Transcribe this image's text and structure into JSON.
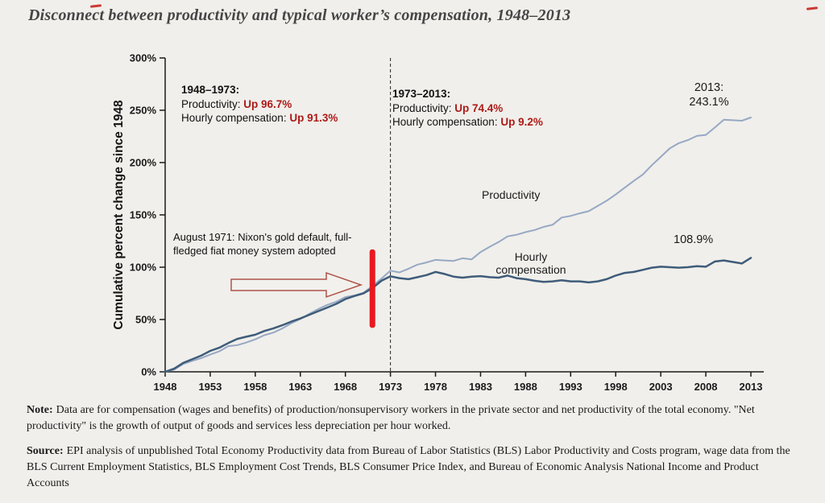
{
  "page": {
    "title": "Disconnect between productivity and typical worker’s compensation, 1948–2013"
  },
  "colors": {
    "background": "#f0efeb",
    "accent_red_text": "#ad1a17",
    "event_bar_red": "#e8191f",
    "productivity_line": "#97a8c4",
    "compensation_line": "#3f5c7a",
    "axis": "#1a1a1a"
  },
  "chart_data": {
    "type": "line",
    "title": "Disconnect between productivity and typical worker’s compensation, 1948–2013",
    "xlabel": "",
    "ylabel": "Cumulative percent change since 1948",
    "ylim": [
      0,
      300
    ],
    "y_ticks": [
      0,
      50,
      100,
      150,
      200,
      250,
      300
    ],
    "y_tick_labels": [
      "0%",
      "50%",
      "100%",
      "150%",
      "200%",
      "250%",
      "300%"
    ],
    "x_ticks": [
      1948,
      1953,
      1958,
      1963,
      1968,
      1973,
      1978,
      1983,
      1988,
      1993,
      1998,
      2003,
      2008,
      2013
    ],
    "x": [
      1948,
      1949,
      1950,
      1951,
      1952,
      1953,
      1954,
      1955,
      1956,
      1957,
      1958,
      1959,
      1960,
      1961,
      1962,
      1963,
      1964,
      1965,
      1966,
      1967,
      1968,
      1969,
      1970,
      1971,
      1972,
      1973,
      1974,
      1975,
      1976,
      1977,
      1978,
      1979,
      1980,
      1981,
      1982,
      1983,
      1984,
      1985,
      1986,
      1987,
      1988,
      1989,
      1990,
      1991,
      1992,
      1993,
      1994,
      1995,
      1996,
      1997,
      1998,
      1999,
      2000,
      2001,
      2002,
      2003,
      2004,
      2005,
      2006,
      2007,
      2008,
      2009,
      2010,
      2011,
      2012,
      2013
    ],
    "series": [
      {
        "name": "Productivity",
        "color": "#97a8c4",
        "width": 2,
        "values": [
          0,
          2.1,
          7.5,
          10.5,
          13,
          16.5,
          19.5,
          24.5,
          25.5,
          28,
          31,
          35,
          37.5,
          41.5,
          46.5,
          50.5,
          55.5,
          60,
          64,
          67,
          71.5,
          73,
          75.5,
          82,
          89,
          96.7,
          95,
          98.5,
          102.5,
          104.5,
          107,
          106.5,
          106,
          108.5,
          107.5,
          114.5,
          119.5,
          124,
          129.5,
          131,
          133.5,
          135.5,
          138.5,
          140.5,
          147.5,
          149,
          151.5,
          153.5,
          158.5,
          163.5,
          169.5,
          176,
          182.5,
          188.5,
          197.5,
          205.5,
          213.5,
          218.5,
          221.5,
          225.5,
          226.5,
          233.5,
          241,
          240.5,
          240,
          243.1
        ]
      },
      {
        "name": "Hourly compensation",
        "color": "#3f5c7a",
        "width": 2.5,
        "values": [
          0,
          3,
          8.5,
          12,
          15.5,
          20,
          23,
          27.5,
          31.5,
          33.5,
          35.5,
          39,
          41.5,
          44.5,
          48,
          51,
          54.5,
          58,
          61.5,
          65,
          69.5,
          72.5,
          75,
          80,
          87,
          91.3,
          89.5,
          88.5,
          90.5,
          92.5,
          95.5,
          93.5,
          91,
          90,
          91,
          91.5,
          90.5,
          90,
          92,
          89.5,
          88.5,
          87,
          86,
          86.5,
          87.5,
          86.5,
          86.5,
          85.5,
          86.5,
          88.5,
          92,
          94.5,
          95.5,
          97.5,
          99.5,
          100.5,
          100,
          99.5,
          100,
          101,
          100.5,
          105.5,
          106.5,
          105,
          103.5,
          108.9
        ]
      }
    ],
    "divider_line": {
      "x": 1973
    },
    "event_marker": {
      "x": 1971,
      "y_from": 42,
      "y_to": 117,
      "color": "#e8191f"
    },
    "legend_position": "inline-labels",
    "grid": false
  },
  "annotations": {
    "period1": {
      "heading": "1948–1973:",
      "productivity_label": "Productivity: ",
      "productivity_value": "Up 96.7%",
      "compensation_label": "Hourly compensation: ",
      "compensation_value": "Up 91.3%"
    },
    "period2": {
      "heading": "1973–2013:",
      "productivity_label": "Productivity: ",
      "productivity_value": "Up 74.4%",
      "compensation_label": "Hourly compensation: ",
      "compensation_value": "Up 9.2%"
    },
    "end_2013": {
      "line1": "2013:",
      "line2": "243.1%"
    },
    "compensation_end_value": "108.9%",
    "nixon_note": "August 1971: Nixon's gold default, full-fledged fiat money system adopted"
  },
  "footer": {
    "note_label": "Note:",
    "note_text": "Data are for compensation (wages and benefits) of production/nonsupervisory workers in the private sector and net productivity of the total economy. \"Net productivity\" is the growth of output of goods and services less depreciation per hour worked.",
    "source_label": "Source:",
    "source_text": "EPI analysis of unpublished Total Economy Productivity data from Bureau of Labor Statistics (BLS) Labor Productivity and Costs program, wage data from the BLS Current Employment Statistics, BLS Employment Cost Trends, BLS Consumer Price Index, and Bureau of Economic Analysis National Income and Product Accounts"
  }
}
